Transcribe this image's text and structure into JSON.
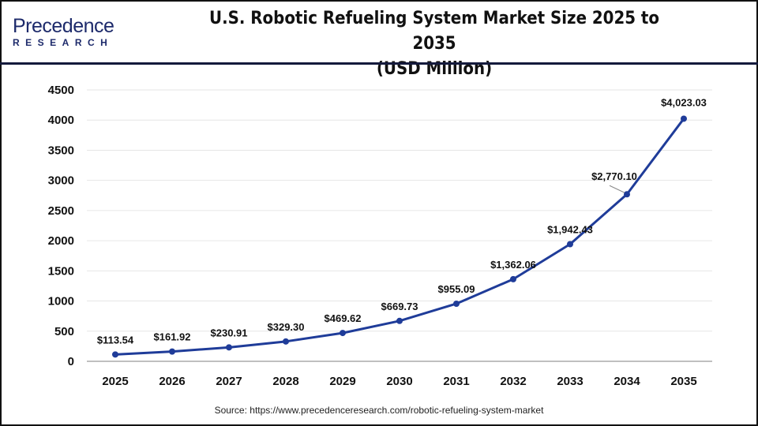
{
  "logo": {
    "brand_top": "Precedence",
    "brand_bottom": "RESEARCH"
  },
  "title_line1": "U.S. Robotic Refueling System Market Size 2025 to 2035",
  "title_line2": "(USD Million)",
  "source": "Source: https://www.precedenceresearch.com/robotic-refueling-system-market",
  "colors": {
    "line": "#1f3c99",
    "grid": "#e6e6e6",
    "axis": "#bfbfbf",
    "header_rule": "#141a3c"
  },
  "chart_data": {
    "type": "line",
    "title": "U.S. Robotic Refueling System Market Size 2025 to 2035 (USD Million)",
    "categories": [
      "2025",
      "2026",
      "2027",
      "2028",
      "2029",
      "2030",
      "2031",
      "2032",
      "2033",
      "2034",
      "2035"
    ],
    "values": [
      113.54,
      161.92,
      230.91,
      329.3,
      469.62,
      669.73,
      955.09,
      1362.06,
      1942.43,
      2770.1,
      4023.03
    ],
    "data_labels": [
      "$113.54",
      "$161.92",
      "$230.91",
      "$329.30",
      "$469.62",
      "$669.73",
      "$955.09",
      "$1,362.06",
      "$1,942.43",
      "$2,770.10",
      "$4,023.03"
    ],
    "yticks": [
      0,
      500,
      1000,
      1500,
      2000,
      2500,
      3000,
      3500,
      4000,
      4500
    ],
    "ylim": [
      0,
      4500
    ],
    "grid": true,
    "legend": "none"
  }
}
